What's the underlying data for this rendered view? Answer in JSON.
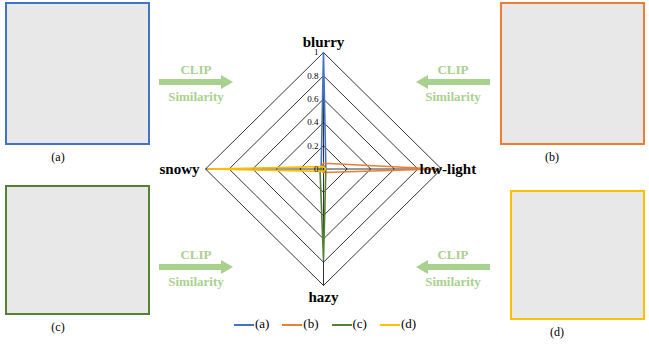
{
  "chart_data": {
    "type": "radar",
    "axes": [
      "blurry",
      "low-light",
      "hazy",
      "snowy"
    ],
    "ylim": [
      0,
      1
    ],
    "yticks": [
      0,
      0.2,
      0.4,
      0.6,
      0.8,
      1
    ],
    "grid": true,
    "legend": "bottom",
    "series": [
      {
        "name": "(a)",
        "color": "#4472c4",
        "values": [
          1,
          0.02,
          0.03,
          0.02
        ]
      },
      {
        "name": "(b)",
        "color": "#ed7d31",
        "values": [
          0.05,
          0.97,
          0.03,
          0.03
        ]
      },
      {
        "name": "(c)",
        "color": "#548235",
        "values": [
          0.03,
          0.02,
          0.78,
          0.03
        ]
      },
      {
        "name": "(d)",
        "color": "#ffc000",
        "values": [
          0.02,
          0.02,
          0.02,
          0.98
        ]
      }
    ]
  },
  "panels": [
    {
      "label": "(a)",
      "color": "#4472c4"
    },
    {
      "label": "(b)",
      "color": "#ed7d31"
    },
    {
      "label": "(c)",
      "color": "#548235"
    },
    {
      "label": "(d)",
      "color": "#ffc000"
    }
  ],
  "arrow_text": [
    "CLIP",
    "Similarity"
  ],
  "arrow_color": "#a9d18e"
}
